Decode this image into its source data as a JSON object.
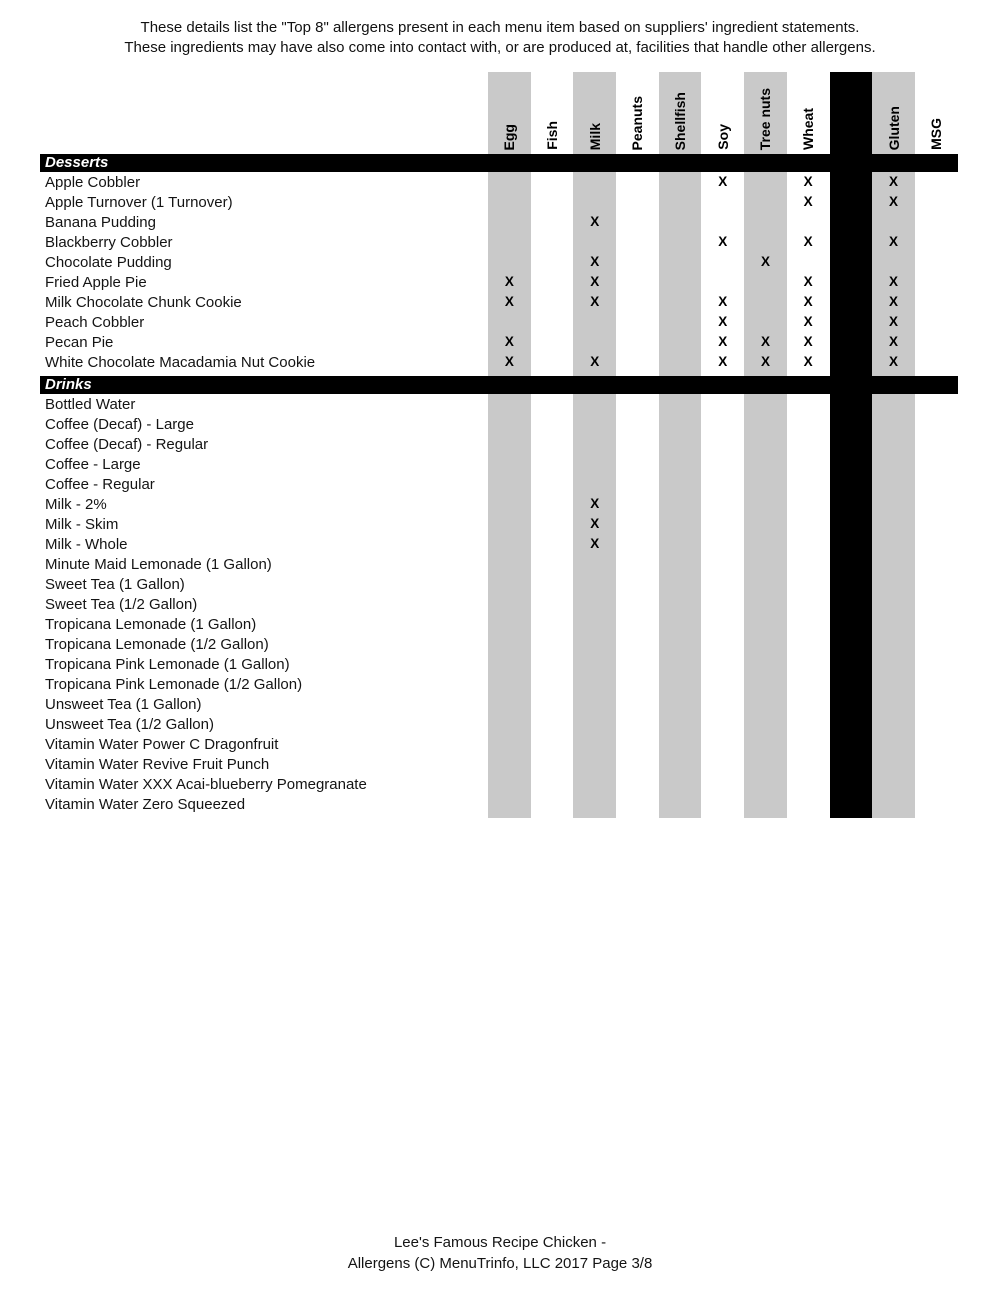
{
  "intro": {
    "line1": "These details list the \"Top 8\" allergens present in each menu item based on suppliers' ingredient statements.",
    "line2": "These ingredients may have also come into contact with, or are produced at, facilities that handle other allergens."
  },
  "colors": {
    "shaded_column": "#c9c9c9",
    "separator_column": "#000000",
    "section_bar_bg": "#000000",
    "section_bar_text": "#ffffff"
  },
  "table": {
    "mark": "X",
    "columns": [
      {
        "label": "Egg",
        "fill": "shaded"
      },
      {
        "label": "Fish",
        "fill": "none"
      },
      {
        "label": "Milk",
        "fill": "shaded"
      },
      {
        "label": "Peanuts",
        "fill": "none"
      },
      {
        "label": "Shellfish",
        "fill": "shaded"
      },
      {
        "label": "Soy",
        "fill": "none"
      },
      {
        "label": "Tree nuts",
        "fill": "shaded"
      },
      {
        "label": "Wheat",
        "fill": "none"
      },
      {
        "label": "",
        "fill": "black"
      },
      {
        "label": "Gluten",
        "fill": "shaded"
      },
      {
        "label": "MSG",
        "fill": "none"
      }
    ],
    "sections": [
      {
        "title": "Desserts",
        "rows": [
          {
            "name": "Apple Cobbler",
            "allergens": [
              "Soy",
              "Wheat",
              "Gluten"
            ]
          },
          {
            "name": "Apple Turnover (1 Turnover)",
            "allergens": [
              "Wheat",
              "Gluten"
            ]
          },
          {
            "name": "Banana Pudding",
            "allergens": [
              "Milk"
            ]
          },
          {
            "name": "Blackberry Cobbler",
            "allergens": [
              "Soy",
              "Wheat",
              "Gluten"
            ]
          },
          {
            "name": "Chocolate Pudding",
            "allergens": [
              "Milk",
              "Tree nuts"
            ]
          },
          {
            "name": "Fried Apple Pie",
            "allergens": [
              "Egg",
              "Milk",
              "Wheat",
              "Gluten"
            ]
          },
          {
            "name": "Milk Chocolate Chunk Cookie",
            "allergens": [
              "Egg",
              "Milk",
              "Soy",
              "Wheat",
              "Gluten"
            ]
          },
          {
            "name": "Peach Cobbler",
            "allergens": [
              "Soy",
              "Wheat",
              "Gluten"
            ]
          },
          {
            "name": "Pecan Pie",
            "allergens": [
              "Egg",
              "Soy",
              "Tree nuts",
              "Wheat",
              "Gluten"
            ]
          },
          {
            "name": "White Chocolate Macadamia Nut Cookie",
            "allergens": [
              "Egg",
              "Milk",
              "Soy",
              "Tree nuts",
              "Wheat",
              "Gluten"
            ]
          }
        ]
      },
      {
        "title": "Drinks",
        "rows": [
          {
            "name": "Bottled Water",
            "allergens": []
          },
          {
            "name": "Coffee (Decaf) - Large",
            "allergens": []
          },
          {
            "name": "Coffee (Decaf) - Regular",
            "allergens": []
          },
          {
            "name": "Coffee - Large",
            "allergens": []
          },
          {
            "name": "Coffee - Regular",
            "allergens": []
          },
          {
            "name": "Milk - 2%",
            "allergens": [
              "Milk"
            ]
          },
          {
            "name": "Milk - Skim",
            "allergens": [
              "Milk"
            ]
          },
          {
            "name": "Milk - Whole",
            "allergens": [
              "Milk"
            ]
          },
          {
            "name": "Minute Maid Lemonade (1 Gallon)",
            "allergens": []
          },
          {
            "name": "Sweet Tea (1 Gallon)",
            "allergens": []
          },
          {
            "name": "Sweet Tea (1/2 Gallon)",
            "allergens": []
          },
          {
            "name": "Tropicana Lemonade (1 Gallon)",
            "allergens": []
          },
          {
            "name": "Tropicana Lemonade (1/2 Gallon)",
            "allergens": []
          },
          {
            "name": "Tropicana Pink Lemonade (1 Gallon)",
            "allergens": []
          },
          {
            "name": "Tropicana Pink Lemonade (1/2 Gallon)",
            "allergens": []
          },
          {
            "name": "Unsweet Tea (1 Gallon)",
            "allergens": []
          },
          {
            "name": "Unsweet Tea (1/2 Gallon)",
            "allergens": []
          },
          {
            "name": "Vitamin Water Power C Dragonfruit",
            "allergens": []
          },
          {
            "name": "Vitamin Water Revive Fruit Punch",
            "allergens": []
          },
          {
            "name": "Vitamin Water XXX Acai-blueberry Pomegranate",
            "allergens": []
          },
          {
            "name": "Vitamin Water Zero Squeezed",
            "allergens": []
          }
        ]
      }
    ]
  },
  "footer": {
    "line1": "Lee's Famous Recipe Chicken -",
    "line2": "Allergens (C) MenuTrinfo, LLC 2017 Page 3/8"
  }
}
